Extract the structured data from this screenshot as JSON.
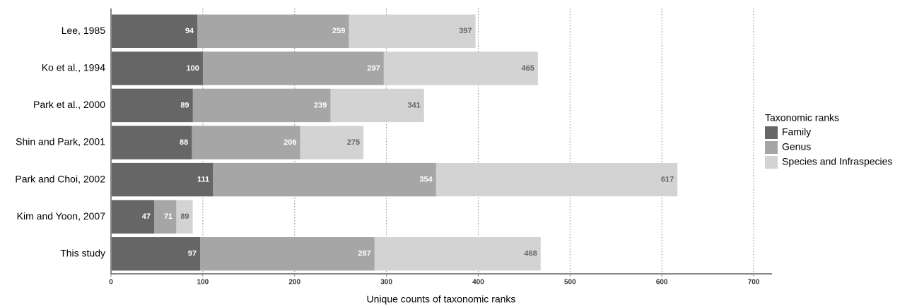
{
  "chart_data": {
    "type": "bar",
    "overlap": true,
    "categories": [
      "Lee, 1985",
      "Ko et al., 1994",
      "Park et al., 2000",
      "Shin and Park, 2001",
      "Park and Choi, 2002",
      "Kim and Yoon, 2007",
      "This study"
    ],
    "series": [
      {
        "name": "Family",
        "color": "#666666",
        "label_color": "#ffffff",
        "values": [
          94,
          100,
          89,
          88,
          111,
          47,
          97
        ]
      },
      {
        "name": "Genus",
        "color": "#a6a6a6",
        "label_color": "#ffffff",
        "values": [
          259,
          297,
          239,
          206,
          354,
          71,
          287
        ]
      },
      {
        "name": "Species and Infraspecies",
        "color": "#d3d3d3",
        "label_color": "#666666",
        "values": [
          397,
          465,
          341,
          275,
          617,
          89,
          468
        ]
      }
    ],
    "x_label": "Unique counts of taxonomic ranks",
    "legend_title": "Taxonomic ranks",
    "xlim": [
      0,
      720
    ],
    "xticks": [
      0,
      100,
      200,
      300,
      400,
      500,
      600,
      700
    ],
    "grid": true
  }
}
